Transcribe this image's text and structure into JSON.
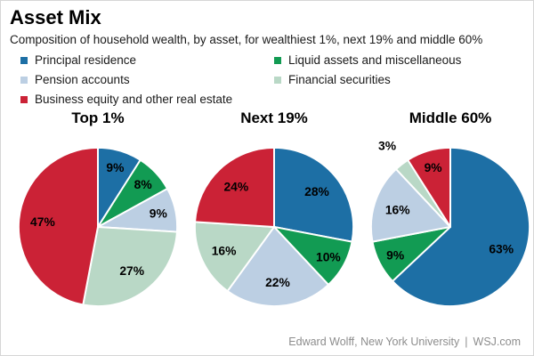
{
  "header": {
    "title": "Asset Mix",
    "subtitle": "Composition of household wealth, by asset, for wealthiest 1%, next 19% and middle 60%"
  },
  "footer": {
    "source": "Edward Wolff, New York University",
    "separator": "|",
    "brand": "WSJ.com"
  },
  "chart_data": {
    "type": "pie",
    "title": "Asset Mix",
    "categories": [
      "Principal residence",
      "Liquid assets and miscellaneous",
      "Pension accounts",
      "Financial securities",
      "Business equity and other real estate"
    ],
    "colors": [
      "#1d6fa5",
      "#129b53",
      "#bccfe3",
      "#b9d8c6",
      "#cb2236"
    ],
    "pies": [
      {
        "title": "Top 1%",
        "values": [
          9,
          8,
          9,
          27,
          47
        ]
      },
      {
        "title": "Next 19%",
        "values": [
          28,
          10,
          22,
          16,
          24
        ]
      },
      {
        "title": "Middle 60%",
        "values": [
          63,
          9,
          16,
          3,
          9
        ]
      }
    ],
    "value_suffix": "%",
    "start_angle_deg": 0,
    "direction": "clockwise",
    "data_labels": true,
    "legend_position": "top",
    "slice_border_color": "#ffffff"
  }
}
